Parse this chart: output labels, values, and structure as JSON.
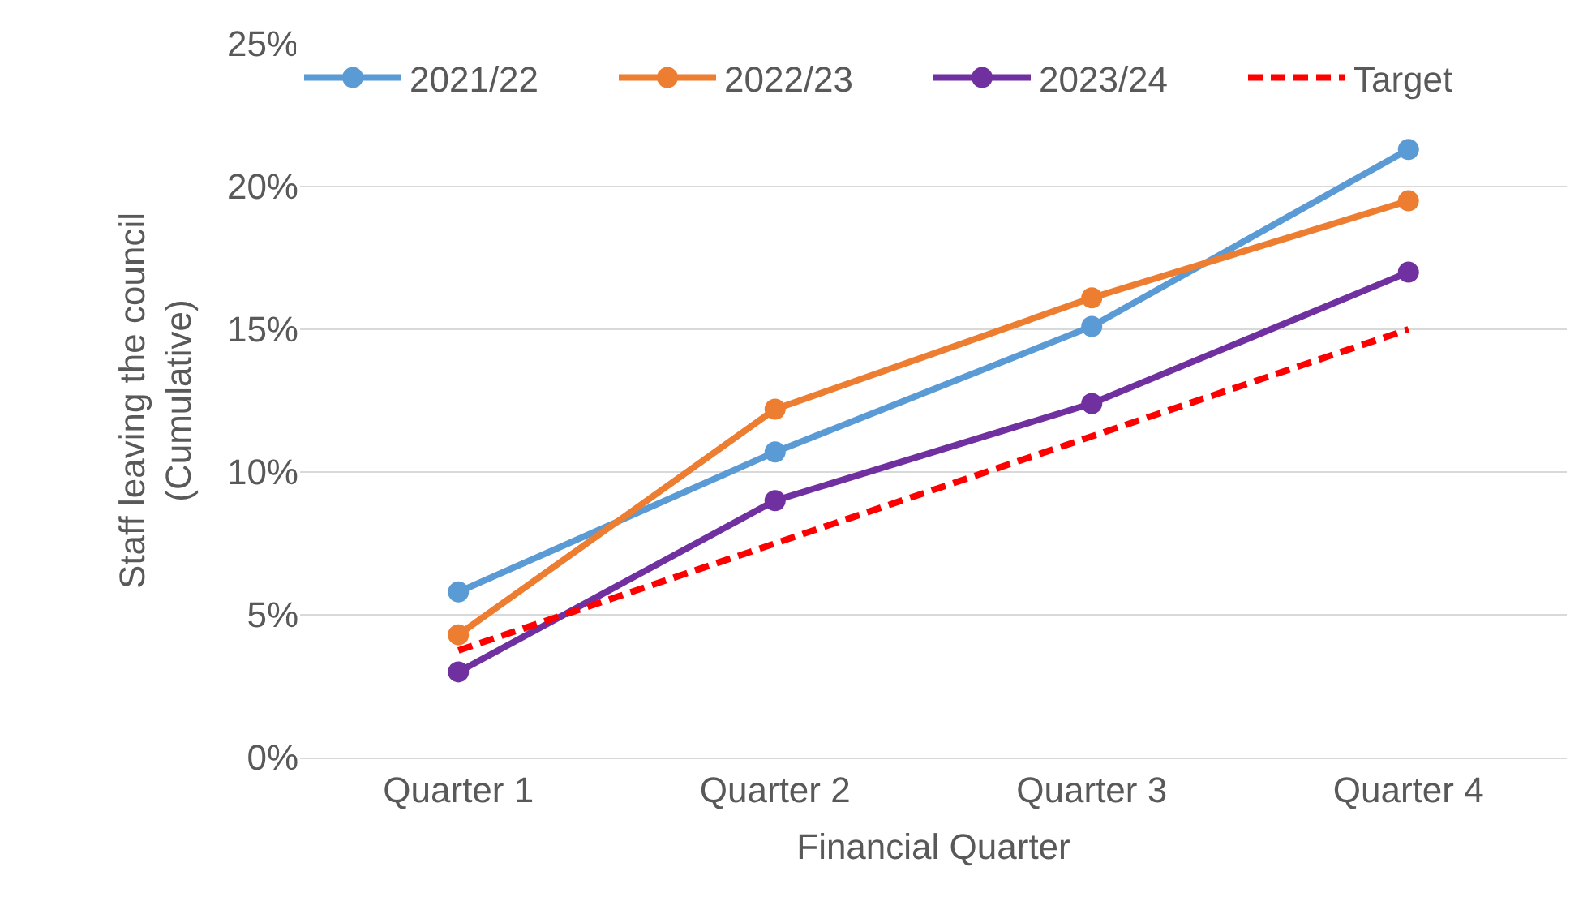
{
  "chart_data": {
    "type": "line",
    "xlabel": "Financial Quarter",
    "ylabel": "Staff leaving the council\n(Cumulative)",
    "categories": [
      "Quarter 1",
      "Quarter 2",
      "Quarter 3",
      "Quarter 4"
    ],
    "series": [
      {
        "name": "2021/22",
        "color": "#5b9bd5",
        "values": [
          5.8,
          10.7,
          15.1,
          21.3
        ],
        "marker": "circle",
        "line_style": "solid"
      },
      {
        "name": "2022/23",
        "color": "#ed7d31",
        "values": [
          4.3,
          12.2,
          16.1,
          19.5
        ],
        "marker": "circle",
        "line_style": "solid"
      },
      {
        "name": "2023/24",
        "color": "#7030a0",
        "values": [
          3.0,
          9.0,
          12.4,
          17.0
        ],
        "marker": "circle",
        "line_style": "solid"
      },
      {
        "name": "Target",
        "color": "#ff0000",
        "values": [
          3.75,
          7.5,
          11.25,
          15.0
        ],
        "marker": "none",
        "line_style": "dashed"
      }
    ],
    "ylim": [
      0,
      25
    ],
    "yticks": [
      {
        "value": 0,
        "label": "0%"
      },
      {
        "value": 5,
        "label": "5%"
      },
      {
        "value": 10,
        "label": "10%"
      },
      {
        "value": 15,
        "label": "15%"
      },
      {
        "value": 20,
        "label": "20%"
      },
      {
        "value": 25,
        "label": "25%"
      }
    ],
    "grid": "y",
    "legend": "top"
  }
}
